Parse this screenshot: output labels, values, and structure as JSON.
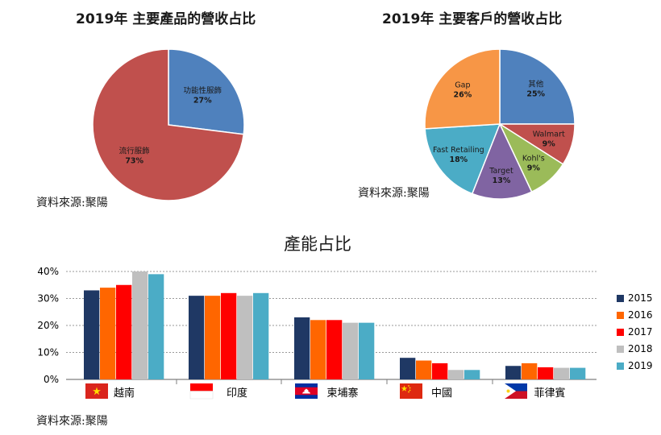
{
  "chart_data": [
    {
      "type": "pie",
      "title": "2019年 主要產品的營收占比",
      "categories": [
        "功能性服飾",
        "流行服飾"
      ],
      "values": [
        27,
        73
      ],
      "value_labels": [
        "27%",
        "73%"
      ],
      "colors": [
        "#4f81bd",
        "#c0504d"
      ]
    },
    {
      "type": "pie",
      "title": "2019年 主要客戶的營收占比",
      "categories": [
        "其他",
        "Walmart",
        "Kohl's",
        "Target",
        "Fast Retailing",
        "Gap"
      ],
      "values": [
        25,
        9,
        9,
        13,
        18,
        26
      ],
      "value_labels": [
        "25%",
        "9%",
        "9%",
        "13%",
        "18%",
        "26%"
      ],
      "colors": [
        "#4f81bd",
        "#c0504d",
        "#9bbb59",
        "#8064a2",
        "#4bacc6",
        "#f79646"
      ]
    },
    {
      "type": "bar",
      "title": "產能占比",
      "categories": [
        "越南",
        "印度",
        "柬埔寨",
        "中國",
        "菲律賓"
      ],
      "series": [
        {
          "name": "2015",
          "color": "#1f3864",
          "values": [
            33,
            31,
            23,
            8,
            5
          ]
        },
        {
          "name": "2016",
          "color": "#ff6600",
          "values": [
            34,
            31,
            22,
            7,
            6
          ]
        },
        {
          "name": "2017",
          "color": "#ff0000",
          "values": [
            35,
            32,
            22,
            6,
            4.5
          ]
        },
        {
          "name": "2018",
          "color": "#bfbfbf",
          "values": [
            40,
            31,
            21,
            3.5,
            4.3
          ]
        },
        {
          "name": "2019",
          "color": "#4bacc6",
          "values": [
            39,
            32,
            21,
            3.5,
            4.3
          ]
        }
      ],
      "ylim": [
        0,
        40
      ],
      "yticks": [
        0,
        10,
        20,
        30,
        40
      ],
      "ytick_labels": [
        "0%",
        "10%",
        "20%",
        "30%",
        "40%"
      ],
      "grid": true,
      "legend_position": "right"
    }
  ],
  "sources": [
    "資料來源:聚陽",
    "資料來源:聚陽",
    "資料來源:聚陽"
  ]
}
